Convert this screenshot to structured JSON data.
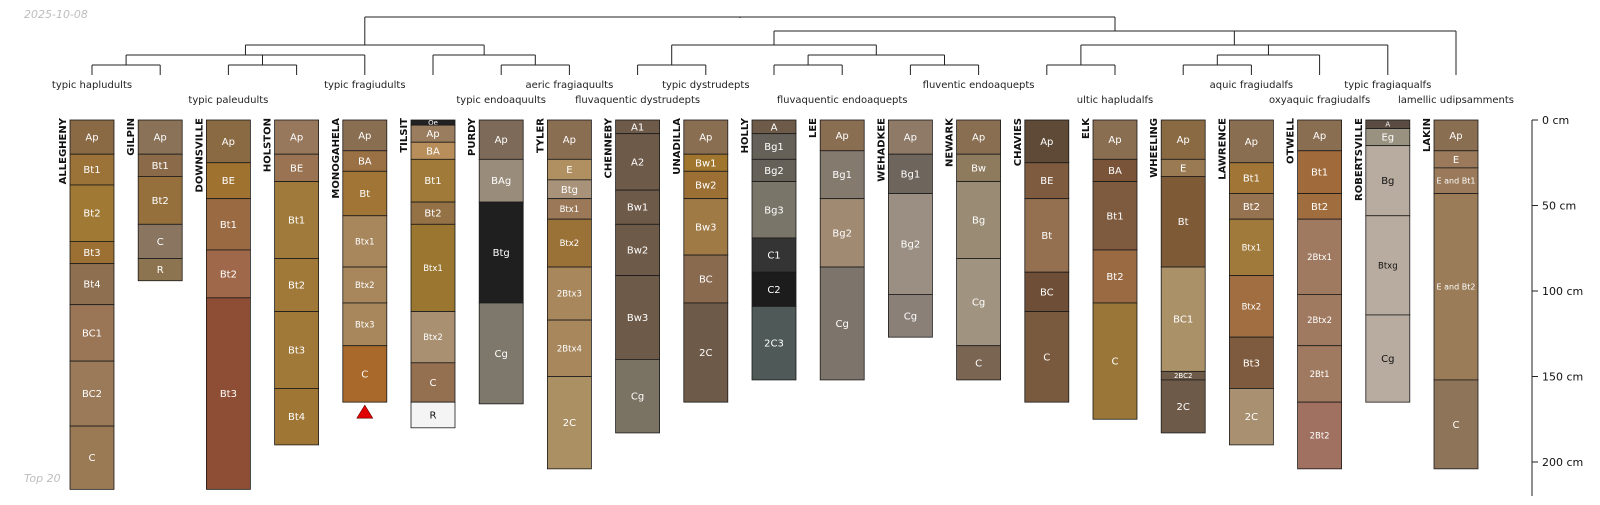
{
  "header": {
    "date": "2025-10-08"
  },
  "footer": {
    "label": "Top 20"
  },
  "depth_axis": {
    "max_cm": 216,
    "ticks": [
      {
        "value": 0,
        "label": "0 cm"
      },
      {
        "value": 50,
        "label": "50 cm"
      },
      {
        "value": 100,
        "label": "100 cm"
      },
      {
        "value": 150,
        "label": "150 cm"
      },
      {
        "value": 200,
        "label": "200 cm"
      }
    ]
  },
  "taxa": [
    {
      "text": "typic hapludults",
      "over": 0,
      "row": 0
    },
    {
      "text": "typic paleudults",
      "over": 2,
      "row": 1
    },
    {
      "text": "typic fragiudults",
      "over": 4,
      "row": 0
    },
    {
      "text": "typic endoaquults",
      "over": 6,
      "row": 1
    },
    {
      "text": "aeric fragiaquults",
      "over": 7,
      "row": 0
    },
    {
      "text": "fluvaquentic dystrudepts",
      "over": 8,
      "row": 1
    },
    {
      "text": "typic dystrudepts",
      "over": 9,
      "row": 0
    },
    {
      "text": "fluvaquentic endoaquepts",
      "over": 11,
      "row": 1
    },
    {
      "text": "fluventic endoaquepts",
      "over": 13,
      "row": 0
    },
    {
      "text": "ultic hapludalfs",
      "over": 15,
      "row": 1
    },
    {
      "text": "aquic fragiudalfs",
      "over": 17,
      "row": 0
    },
    {
      "text": "oxyaquic fragiudalfs",
      "over": 18,
      "row": 1
    },
    {
      "text": "typic fragiaqualfs",
      "over": 19,
      "row": 0
    },
    {
      "text": "lamellic udipsamments",
      "over": 20,
      "row": 1
    }
  ],
  "profiles": [
    {
      "name": "ALLEGHENY",
      "horizons": [
        {
          "name": "Ap",
          "top": 0,
          "bottom": 20,
          "color": "#8a6a45"
        },
        {
          "name": "Bt1",
          "top": 20,
          "bottom": 38,
          "color": "#9b7238"
        },
        {
          "name": "Bt2",
          "top": 38,
          "bottom": 71,
          "color": "#a07a35"
        },
        {
          "name": "Bt3",
          "top": 71,
          "bottom": 84,
          "color": "#9b7032"
        },
        {
          "name": "Bt4",
          "top": 84,
          "bottom": 108,
          "color": "#8e7050"
        },
        {
          "name": "BC1",
          "top": 108,
          "bottom": 141,
          "color": "#9a7656"
        },
        {
          "name": "BC2",
          "top": 141,
          "bottom": 179,
          "color": "#9a7a58"
        },
        {
          "name": "C",
          "top": 179,
          "bottom": 216,
          "color": "#9a7a55"
        }
      ]
    },
    {
      "name": "GILPIN",
      "horizons": [
        {
          "name": "Ap",
          "top": 0,
          "bottom": 20,
          "color": "#8a7258"
        },
        {
          "name": "Bt1",
          "top": 20,
          "bottom": 33,
          "color": "#8a6a48"
        },
        {
          "name": "Bt2",
          "top": 33,
          "bottom": 61,
          "color": "#956f3c"
        },
        {
          "name": "C",
          "top": 61,
          "bottom": 81,
          "color": "#8a7560"
        },
        {
          "name": "R",
          "top": 81,
          "bottom": 94,
          "color": "#8d7450"
        }
      ]
    },
    {
      "name": "DOWNSVILLE",
      "horizons": [
        {
          "name": "Ap",
          "top": 0,
          "bottom": 25,
          "color": "#8a6a42"
        },
        {
          "name": "BE",
          "top": 25,
          "bottom": 46,
          "color": "#a0722f"
        },
        {
          "name": "Bt1",
          "top": 46,
          "bottom": 76,
          "color": "#9a6a42"
        },
        {
          "name": "Bt2",
          "top": 76,
          "bottom": 104,
          "color": "#a0684a"
        },
        {
          "name": "Bt3",
          "top": 104,
          "bottom": 216,
          "color": "#8e4e35"
        }
      ]
    },
    {
      "name": "HOLSTON",
      "horizons": [
        {
          "name": "Ap",
          "top": 0,
          "bottom": 20,
          "color": "#98785c"
        },
        {
          "name": "BE",
          "top": 20,
          "bottom": 36,
          "color": "#9a7352"
        },
        {
          "name": "Bt1",
          "top": 36,
          "bottom": 81,
          "color": "#a07a3a"
        },
        {
          "name": "Bt2",
          "top": 81,
          "bottom": 112,
          "color": "#a07838"
        },
        {
          "name": "Bt3",
          "top": 112,
          "bottom": 157,
          "color": "#a07838"
        },
        {
          "name": "Bt4",
          "top": 157,
          "bottom": 190,
          "color": "#a07635"
        }
      ]
    },
    {
      "name": "MONOGAHELA",
      "horizons": [
        {
          "name": "Ap",
          "top": 0,
          "bottom": 18,
          "color": "#8a6e52"
        },
        {
          "name": "BA",
          "top": 18,
          "bottom": 30,
          "color": "#9a7045"
        },
        {
          "name": "Bt",
          "top": 30,
          "bottom": 56,
          "color": "#a07535"
        },
        {
          "name": "Btx1",
          "top": 56,
          "bottom": 86,
          "color": "#a8875c"
        },
        {
          "name": "Btx2",
          "top": 86,
          "bottom": 107,
          "color": "#a8875c"
        },
        {
          "name": "Btx3",
          "top": 107,
          "bottom": 132,
          "color": "#a8875c"
        },
        {
          "name": "C",
          "top": 132,
          "bottom": 165,
          "color": "#a8692a"
        }
      ]
    },
    {
      "name": "TILSIT",
      "horizons": [
        {
          "name": "Oe",
          "top": 0,
          "bottom": 3,
          "color": "#222222"
        },
        {
          "name": "Ap",
          "top": 3,
          "bottom": 13,
          "color": "#9a7c5e"
        },
        {
          "name": "BA",
          "top": 13,
          "bottom": 23,
          "color": "#b88e5a"
        },
        {
          "name": "Bt1",
          "top": 23,
          "bottom": 48,
          "color": "#a07a38"
        },
        {
          "name": "Bt2",
          "top": 48,
          "bottom": 61,
          "color": "#957246"
        },
        {
          "name": "Btx1",
          "top": 61,
          "bottom": 112,
          "color": "#9a7630"
        },
        {
          "name": "Btx2",
          "top": 112,
          "bottom": 142,
          "color": "#a89070"
        },
        {
          "name": "C",
          "top": 142,
          "bottom": 165,
          "color": "#957050"
        },
        {
          "name": "R",
          "top": 165,
          "bottom": 180,
          "color": "#f4f4f4"
        }
      ]
    },
    {
      "name": "PURDY",
      "horizons": [
        {
          "name": "Ap",
          "top": 0,
          "bottom": 23,
          "color": "#7d6a58"
        },
        {
          "name": "BAg",
          "top": 23,
          "bottom": 48,
          "color": "#9a8c7a"
        },
        {
          "name": "Btg",
          "top": 48,
          "bottom": 107,
          "color": "#1f1f1f"
        },
        {
          "name": "Cg",
          "top": 107,
          "bottom": 166,
          "color": "#7d776c"
        }
      ]
    },
    {
      "name": "TYLER",
      "horizons": [
        {
          "name": "Ap",
          "top": 0,
          "bottom": 23,
          "color": "#8a6e52"
        },
        {
          "name": "E",
          "top": 23,
          "bottom": 35,
          "color": "#b09060"
        },
        {
          "name": "Btg",
          "top": 35,
          "bottom": 46,
          "color": "#a8927a"
        },
        {
          "name": "Btx1",
          "top": 46,
          "bottom": 58,
          "color": "#9a7858"
        },
        {
          "name": "Btx2",
          "top": 58,
          "bottom": 86,
          "color": "#9a7238"
        },
        {
          "name": "2Btx3",
          "top": 86,
          "bottom": 117,
          "color": "#a8875c"
        },
        {
          "name": "2Btx4",
          "top": 117,
          "bottom": 150,
          "color": "#a8875c"
        },
        {
          "name": "2C",
          "top": 150,
          "bottom": 204,
          "color": "#ab9064"
        }
      ]
    },
    {
      "name": "CHENNEBY",
      "horizons": [
        {
          "name": "A1",
          "top": 0,
          "bottom": 8,
          "color": "#6e5a48"
        },
        {
          "name": "A2",
          "top": 8,
          "bottom": 41,
          "color": "#6e5a48"
        },
        {
          "name": "Bw1",
          "top": 41,
          "bottom": 61,
          "color": "#6e5a48"
        },
        {
          "name": "Bw2",
          "top": 61,
          "bottom": 91,
          "color": "#6e5a48"
        },
        {
          "name": "Bw3",
          "top": 91,
          "bottom": 140,
          "color": "#6e5a48"
        },
        {
          "name": "Cg",
          "top": 140,
          "bottom": 183,
          "color": "#7a7262"
        }
      ]
    },
    {
      "name": "UNADILLA",
      "horizons": [
        {
          "name": "Ap",
          "top": 0,
          "bottom": 20,
          "color": "#8a6e52"
        },
        {
          "name": "Bw1",
          "top": 20,
          "bottom": 30,
          "color": "#a0762f"
        },
        {
          "name": "Bw2",
          "top": 30,
          "bottom": 46,
          "color": "#9c7035"
        },
        {
          "name": "Bw3",
          "top": 46,
          "bottom": 79,
          "color": "#a07a45"
        },
        {
          "name": "BC",
          "top": 79,
          "bottom": 107,
          "color": "#8a6a4e"
        },
        {
          "name": "2C",
          "top": 107,
          "bottom": 165,
          "color": "#6e5a48"
        }
      ]
    },
    {
      "name": "HOLLY",
      "horizons": [
        {
          "name": "A",
          "top": 0,
          "bottom": 8,
          "color": "#6e5a48"
        },
        {
          "name": "Bg1",
          "top": 8,
          "bottom": 23,
          "color": "#656058"
        },
        {
          "name": "Bg2",
          "top": 23,
          "bottom": 36,
          "color": "#656058"
        },
        {
          "name": "Bg3",
          "top": 36,
          "bottom": 69,
          "color": "#7a7569"
        },
        {
          "name": "C1",
          "top": 69,
          "bottom": 89,
          "color": "#343434"
        },
        {
          "name": "C2",
          "top": 89,
          "bottom": 109,
          "color": "#1c1c1c"
        },
        {
          "name": "2C3",
          "top": 109,
          "bottom": 152,
          "color": "#4f5a58"
        }
      ]
    },
    {
      "name": "LEE",
      "horizons": [
        {
          "name": "Ap",
          "top": 0,
          "bottom": 18,
          "color": "#8a6e52"
        },
        {
          "name": "Bg1",
          "top": 18,
          "bottom": 46,
          "color": "#857a6e"
        },
        {
          "name": "Bg2",
          "top": 46,
          "bottom": 86,
          "color": "#a08a72"
        },
        {
          "name": "Cg",
          "top": 86,
          "bottom": 152,
          "color": "#7d756b"
        }
      ]
    },
    {
      "name": "WEHADKEE",
      "horizons": [
        {
          "name": "Ap",
          "top": 0,
          "bottom": 20,
          "color": "#8e7a66"
        },
        {
          "name": "Bg1",
          "top": 20,
          "bottom": 43,
          "color": "#6e655c"
        },
        {
          "name": "Bg2",
          "top": 43,
          "bottom": 102,
          "color": "#9a8f82"
        },
        {
          "name": "Cg",
          "top": 102,
          "bottom": 127,
          "color": "#8a8078"
        }
      ]
    },
    {
      "name": "NEWARK",
      "horizons": [
        {
          "name": "Ap",
          "top": 0,
          "bottom": 20,
          "color": "#8a6e52"
        },
        {
          "name": "Bw",
          "top": 20,
          "bottom": 36,
          "color": "#8e7a5c"
        },
        {
          "name": "Bg",
          "top": 36,
          "bottom": 81,
          "color": "#9a8c74"
        },
        {
          "name": "Cg",
          "top": 81,
          "bottom": 132,
          "color": "#a09480"
        },
        {
          "name": "C",
          "top": 132,
          "bottom": 152,
          "color": "#7a6452"
        }
      ]
    },
    {
      "name": "CHAVIES",
      "horizons": [
        {
          "name": "Ap",
          "top": 0,
          "bottom": 25,
          "color": "#5e4a36"
        },
        {
          "name": "BE",
          "top": 25,
          "bottom": 46,
          "color": "#7e5a3e"
        },
        {
          "name": "Bt",
          "top": 46,
          "bottom": 89,
          "color": "#957050"
        },
        {
          "name": "BC",
          "top": 89,
          "bottom": 112,
          "color": "#6e4e36"
        },
        {
          "name": "C",
          "top": 112,
          "bottom": 165,
          "color": "#7a5a3e"
        }
      ]
    },
    {
      "name": "ELK",
      "horizons": [
        {
          "name": "Ap",
          "top": 0,
          "bottom": 23,
          "color": "#8a6e52"
        },
        {
          "name": "BA",
          "top": 23,
          "bottom": 36,
          "color": "#7a5438"
        },
        {
          "name": "Bt1",
          "top": 36,
          "bottom": 76,
          "color": "#7e5a3e"
        },
        {
          "name": "Bt2",
          "top": 76,
          "bottom": 107,
          "color": "#9a6a42"
        },
        {
          "name": "C",
          "top": 107,
          "bottom": 175,
          "color": "#9a7638"
        }
      ]
    },
    {
      "name": "WHEELING",
      "horizons": [
        {
          "name": "Ap",
          "top": 0,
          "bottom": 23,
          "color": "#8a6a42"
        },
        {
          "name": "E",
          "top": 23,
          "bottom": 33,
          "color": "#9a7a52"
        },
        {
          "name": "Bt",
          "top": 33,
          "bottom": 86,
          "color": "#7e5a36"
        },
        {
          "name": "BC1",
          "top": 86,
          "bottom": 147,
          "color": "#ab9168"
        },
        {
          "name": "2BC2",
          "top": 147,
          "bottom": 152,
          "color": "#6e5a48"
        },
        {
          "name": "2C",
          "top": 152,
          "bottom": 183,
          "color": "#6e5a48"
        }
      ]
    },
    {
      "name": "LAWRENCE",
      "horizons": [
        {
          "name": "Ap",
          "top": 0,
          "bottom": 25,
          "color": "#8a6e52"
        },
        {
          "name": "Bt1",
          "top": 25,
          "bottom": 43,
          "color": "#a07535"
        },
        {
          "name": "Bt2",
          "top": 43,
          "bottom": 58,
          "color": "#957250"
        },
        {
          "name": "Btx1",
          "top": 58,
          "bottom": 91,
          "color": "#a07a3a"
        },
        {
          "name": "Btx2",
          "top": 91,
          "bottom": 127,
          "color": "#a06e40"
        },
        {
          "name": "Bt3",
          "top": 127,
          "bottom": 157,
          "color": "#7e5a3e"
        },
        {
          "name": "2C",
          "top": 157,
          "bottom": 190,
          "color": "#a89070"
        }
      ]
    },
    {
      "name": "OTWELL",
      "horizons": [
        {
          "name": "Ap",
          "top": 0,
          "bottom": 18,
          "color": "#8a6e52"
        },
        {
          "name": "Bt1",
          "top": 18,
          "bottom": 43,
          "color": "#a06a3a"
        },
        {
          "name": "Bt2",
          "top": 43,
          "bottom": 58,
          "color": "#a06e3e"
        },
        {
          "name": "2Btx1",
          "top": 58,
          "bottom": 102,
          "color": "#a07a60"
        },
        {
          "name": "2Btx2",
          "top": 102,
          "bottom": 132,
          "color": "#a07a60"
        },
        {
          "name": "2Bt1",
          "top": 132,
          "bottom": 165,
          "color": "#a07a60"
        },
        {
          "name": "2Bt2",
          "top": 165,
          "bottom": 204,
          "color": "#a07060"
        }
      ]
    },
    {
      "name": "ROBERTSVILLE",
      "horizons": [
        {
          "name": "A",
          "top": 0,
          "bottom": 5,
          "color": "#5a4c42"
        },
        {
          "name": "Eg",
          "top": 5,
          "bottom": 15,
          "color": "#9a9280"
        },
        {
          "name": "Bg",
          "top": 15,
          "bottom": 56,
          "color": "#b8aca0"
        },
        {
          "name": "Btxg",
          "top": 56,
          "bottom": 114,
          "color": "#b8aca0"
        },
        {
          "name": "Cg",
          "top": 114,
          "bottom": 165,
          "color": "#b8aca0"
        }
      ]
    },
    {
      "name": "LAKIN",
      "horizons": [
        {
          "name": "Ap",
          "top": 0,
          "bottom": 18,
          "color": "#8a6e52"
        },
        {
          "name": "E",
          "top": 18,
          "bottom": 28,
          "color": "#9a7a5a"
        },
        {
          "name": "E and Bt1",
          "top": 28,
          "bottom": 43,
          "color": "#9a7a5a"
        },
        {
          "name": "E and Bt2",
          "top": 43,
          "bottom": 152,
          "color": "#9a7c58"
        },
        {
          "name": "C",
          "top": 152,
          "bottom": 204,
          "color": "#8e7458"
        }
      ]
    }
  ]
}
